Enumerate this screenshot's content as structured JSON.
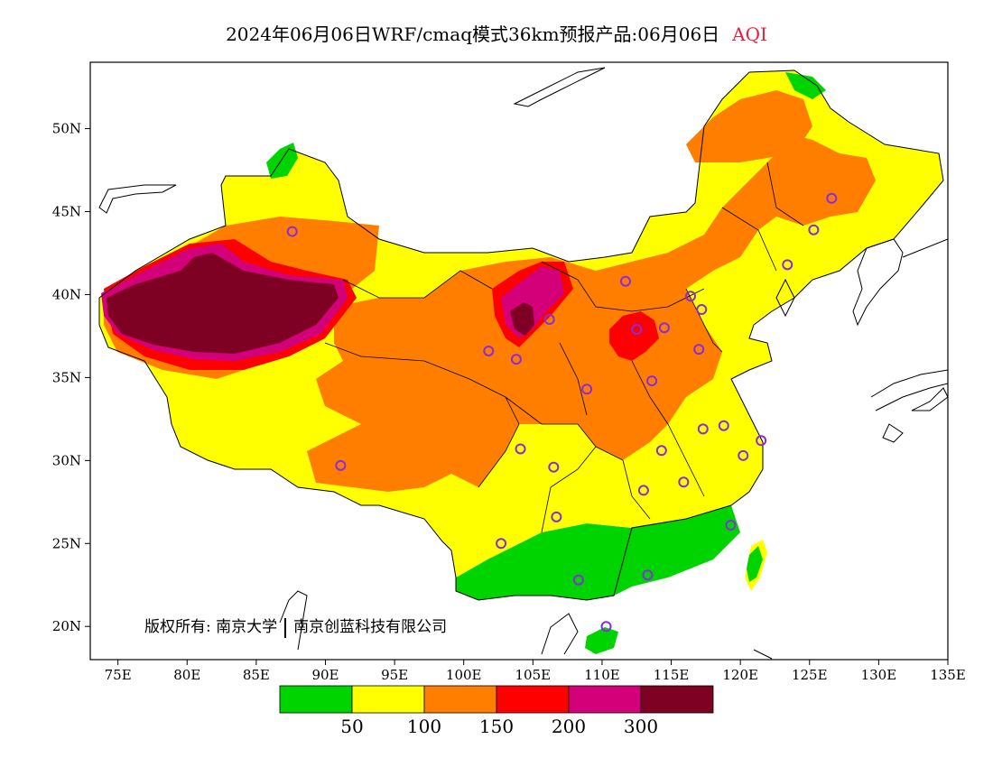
{
  "title": {
    "main": "2024年06月06日WRF/cmaq模式36km预报产品:06月06日",
    "variable": "AQI"
  },
  "axes": {
    "lat_labels": [
      "50N",
      "45N",
      "40N",
      "35N",
      "30N",
      "25N",
      "20N"
    ],
    "lon_labels": [
      "75E",
      "80E",
      "85E",
      "90E",
      "95E",
      "100E",
      "105E",
      "110E",
      "115E",
      "120E",
      "125E",
      "130E",
      "135E"
    ],
    "lon_range": [
      73,
      135
    ],
    "lat_range": [
      18,
      54
    ]
  },
  "copyright": {
    "prefix": "版权所有:",
    "org1": "南京大学",
    "org2": "南京创蓝科技有限公司"
  },
  "legend": {
    "colors": [
      "#00d400",
      "#ffff00",
      "#ff7e00",
      "#ff0000",
      "#d4007a",
      "#7e0023"
    ],
    "labels": [
      "50",
      "100",
      "150",
      "200",
      "300"
    ]
  },
  "stations_icon": "circle-marker-icon"
}
